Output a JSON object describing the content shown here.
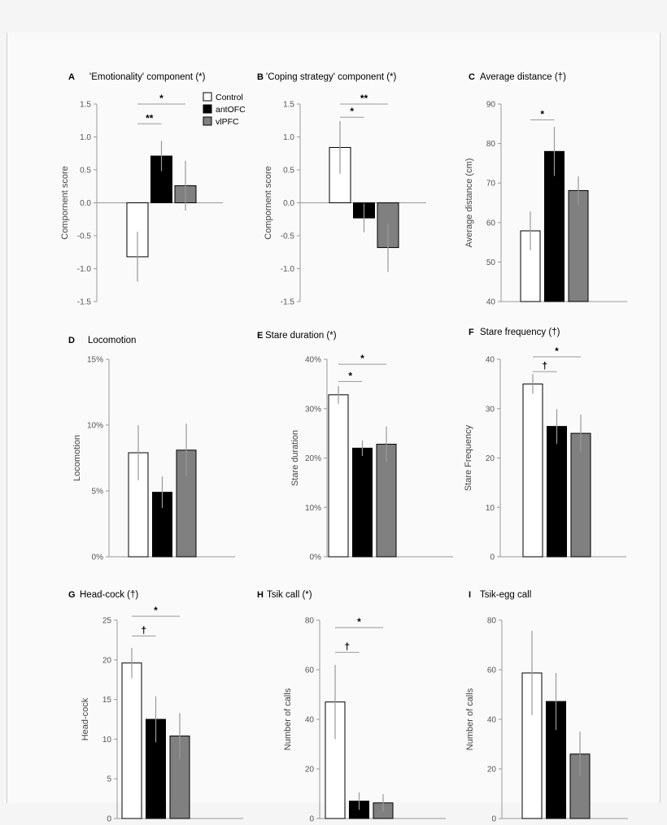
{
  "colors": {
    "control": "#ffffff",
    "antOFC": "#000000",
    "vlPFC": "#808080",
    "axis": "#999999",
    "errorbar": "#999999",
    "text": "#222222"
  },
  "legend": {
    "position": "top-right of panel A",
    "items": [
      "Control",
      "antOFC",
      "vlPFC"
    ]
  },
  "chart_data": [
    {
      "id": "A",
      "type": "bar",
      "letter": "A",
      "title": "'Emotionality' component (*)",
      "ylabel": "Compornent score",
      "ylim": [
        -1.5,
        1.5
      ],
      "ticks": [
        "1.5",
        "1.0",
        "0.5",
        "0.0",
        "-0.5",
        "-1.0",
        "-1.5"
      ],
      "categories": [
        "Control",
        "antOFC",
        "vlPFC"
      ],
      "values": [
        -0.82,
        0.71,
        0.26
      ],
      "errors": [
        0.38,
        0.23,
        0.38
      ],
      "significance": [
        {
          "from": "Control",
          "to": "antOFC",
          "label": "**",
          "level": 1.2
        },
        {
          "from": "Control",
          "to": "vlPFC",
          "label": "*",
          "level": 1.5
        }
      ]
    },
    {
      "id": "B",
      "type": "bar",
      "letter": "B",
      "title": "'Coping strategy' component (*)",
      "ylabel": "Compornent score",
      "ylim": [
        -1.5,
        1.5
      ],
      "ticks": [
        "1.5",
        "1.0",
        "0.5",
        "0.0",
        "-0.5",
        "-1.0",
        "-1.5"
      ],
      "categories": [
        "Control",
        "antOFC",
        "vlPFC"
      ],
      "values": [
        0.84,
        -0.23,
        -0.68
      ],
      "errors": [
        0.4,
        0.22,
        0.37
      ],
      "significance": [
        {
          "from": "Control",
          "to": "antOFC",
          "label": "*",
          "level": 1.3
        },
        {
          "from": "Control",
          "to": "vlPFC",
          "label": "**",
          "level": 1.5
        }
      ]
    },
    {
      "id": "C",
      "type": "bar",
      "letter": "C",
      "title": "Average distance (†)",
      "ylabel": "Average distance (cm)",
      "ylim": [
        40,
        90
      ],
      "ticks": [
        "90",
        "80",
        "70",
        "60",
        "50",
        "40"
      ],
      "categories": [
        "Control",
        "antOFC",
        "vlPFC"
      ],
      "values": [
        57.9,
        78.0,
        68.1
      ],
      "errors": [
        4.9,
        6.2,
        3.6
      ],
      "significance": [
        {
          "from": "Control",
          "to": "antOFC",
          "label": "*",
          "level": 86
        }
      ]
    },
    {
      "id": "D",
      "type": "bar",
      "letter": "D",
      "title": "Locomotion",
      "ylabel": "Locomotion",
      "ylim": [
        0,
        15
      ],
      "ticks": [
        "15%",
        "10%",
        "5%",
        "0%"
      ],
      "categories": [
        "Control",
        "antOFC",
        "vlPFC"
      ],
      "values": [
        7.9,
        4.9,
        8.1
      ],
      "errors": [
        2.1,
        1.2,
        2.0
      ],
      "significance": []
    },
    {
      "id": "E",
      "type": "bar",
      "letter": "E",
      "title": "Stare duration (*)",
      "ylabel": "Stare duration",
      "ylim": [
        0,
        40
      ],
      "ticks": [
        "40%",
        "30%",
        "20%",
        "10%",
        "0%"
      ],
      "categories": [
        "Control",
        "antOFC",
        "vlPFC"
      ],
      "values": [
        32.8,
        22.0,
        22.8
      ],
      "errors": [
        1.8,
        1.6,
        3.6
      ],
      "significance": [
        {
          "from": "Control",
          "to": "antOFC",
          "label": "*",
          "level": 35.5
        },
        {
          "from": "Control",
          "to": "vlPFC",
          "label": "*",
          "level": 39
        }
      ]
    },
    {
      "id": "F",
      "type": "bar",
      "letter": "F",
      "title": "Stare frequency (†)",
      "ylabel": "Stare Frequency",
      "ylim": [
        0,
        40
      ],
      "ticks": [
        "40",
        "30",
        "20",
        "10",
        "0"
      ],
      "categories": [
        "Control",
        "antOFC",
        "vlPFC"
      ],
      "values": [
        35.0,
        26.4,
        25.0
      ],
      "errors": [
        2.0,
        3.5,
        3.8
      ],
      "significance": [
        {
          "from": "Control",
          "to": "antOFC",
          "label": "†",
          "level": 37.5
        },
        {
          "from": "Control",
          "to": "vlPFC",
          "label": "*",
          "level": 40.5
        }
      ]
    },
    {
      "id": "G",
      "type": "bar",
      "letter": "G",
      "title": "Head-cock (†)",
      "ylabel": "Head-cock",
      "ylim": [
        0,
        25
      ],
      "ticks": [
        "25",
        "20",
        "15",
        "10",
        "5",
        "0"
      ],
      "categories": [
        "Control",
        "antOFC",
        "vlPFC"
      ],
      "values": [
        19.6,
        12.5,
        10.4
      ],
      "errors": [
        1.9,
        2.9,
        2.9
      ],
      "significance": [
        {
          "from": "Control",
          "to": "antOFC",
          "label": "†",
          "level": 23
        },
        {
          "from": "Control",
          "to": "vlPFC",
          "label": "*",
          "level": 25.5
        }
      ]
    },
    {
      "id": "H",
      "type": "bar",
      "letter": "H",
      "title": "Tsik call (*)",
      "ylabel": "Number of calls",
      "ylim": [
        0,
        80
      ],
      "ticks": [
        "80",
        "60",
        "40",
        "20",
        "0"
      ],
      "categories": [
        "Control",
        "antOFC",
        "vlPFC"
      ],
      "values": [
        47,
        7,
        6.3
      ],
      "errors": [
        15,
        3.5,
        3.5
      ],
      "significance": [
        {
          "from": "Control",
          "to": "antOFC",
          "label": "†",
          "level": 67
        },
        {
          "from": "Control",
          "to": "vlPFC",
          "label": "*",
          "level": 77
        }
      ]
    },
    {
      "id": "I",
      "type": "bar",
      "letter": "I",
      "title": "Tsik-egg call",
      "ylabel": "Number of calls",
      "ylim": [
        0,
        80
      ],
      "ticks": [
        "80",
        "60",
        "40",
        "20",
        "0"
      ],
      "categories": [
        "Control",
        "antOFC",
        "vlPFC"
      ],
      "values": [
        58.7,
        47.2,
        26
      ],
      "errors": [
        17,
        11.5,
        9
      ],
      "significance": []
    }
  ]
}
